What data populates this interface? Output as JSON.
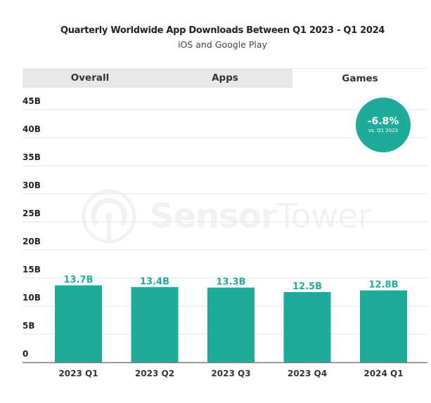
{
  "header": {
    "title": "Quarterly Worldwide App Downloads Between Q1 2023 - Q1 2024",
    "subtitle": "iOS and Google Play"
  },
  "tabs": [
    {
      "label": "Overall",
      "active": false
    },
    {
      "label": "Apps",
      "active": false
    },
    {
      "label": "Games",
      "active": true
    }
  ],
  "badge": {
    "value": "-6.8%",
    "caption": "vs. Q1 2023"
  },
  "watermark": {
    "bold": "Sensor",
    "light": "Tower"
  },
  "colors": {
    "bar": "#1fab9a",
    "badge": "#1fab9a",
    "grid": "#e6e6e6",
    "axis": "#777777"
  },
  "chart_data": {
    "type": "bar",
    "title": "Quarterly Worldwide App Downloads Between Q1 2023 - Q1 2024",
    "subtitle": "iOS and Google Play",
    "categories": [
      "2023 Q1",
      "2023 Q2",
      "2023 Q3",
      "2023 Q4",
      "2024 Q1"
    ],
    "values": [
      13.7,
      13.4,
      13.3,
      12.5,
      12.8
    ],
    "data_labels": [
      "13.7B",
      "13.4B",
      "13.3B",
      "12.5B",
      "12.8B"
    ],
    "unit": "B",
    "xlabel": "",
    "ylabel": "",
    "ylim": [
      0,
      45
    ],
    "yticks": [
      0,
      5,
      10,
      15,
      20,
      25,
      30,
      35,
      40,
      45
    ],
    "ytick_labels": [
      "0",
      "5B",
      "10B",
      "15B",
      "20B",
      "25B",
      "30B",
      "35B",
      "40B",
      "45B"
    ],
    "grid": true,
    "legend": "none"
  }
}
